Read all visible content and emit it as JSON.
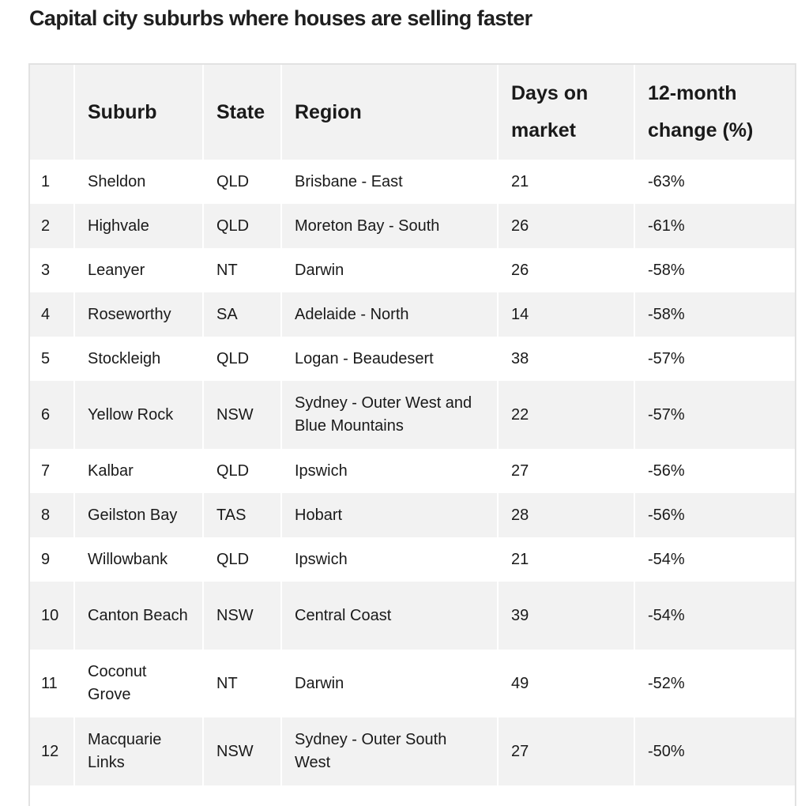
{
  "title": "Capital city suburbs where houses are selling faster",
  "table": {
    "headers": {
      "rank": "",
      "suburb": "Suburb",
      "state": "State",
      "region": "Region",
      "days": "Days on market",
      "change": "12-month change (%)"
    },
    "rows": [
      {
        "rank": "1",
        "suburb": "Sheldon",
        "state": "QLD",
        "region": "Brisbane - East",
        "days": "21",
        "change": "-63%"
      },
      {
        "rank": "2",
        "suburb": "Highvale",
        "state": "QLD",
        "region": "Moreton Bay - South",
        "days": "26",
        "change": "-61%"
      },
      {
        "rank": "3",
        "suburb": "Leanyer",
        "state": "NT",
        "region": "Darwin",
        "days": "26",
        "change": "-58%"
      },
      {
        "rank": "4",
        "suburb": "Roseworthy",
        "state": "SA",
        "region": "Adelaide - North",
        "days": "14",
        "change": "-58%"
      },
      {
        "rank": "5",
        "suburb": "Stockleigh",
        "state": "QLD",
        "region": "Logan - Beaudesert",
        "days": "38",
        "change": "-57%"
      },
      {
        "rank": "6",
        "suburb": "Yellow Rock",
        "state": "NSW",
        "region": "Sydney - Outer West and Blue Mountains",
        "days": "22",
        "change": "-57%"
      },
      {
        "rank": "7",
        "suburb": "Kalbar",
        "state": "QLD",
        "region": "Ipswich",
        "days": "27",
        "change": "-56%"
      },
      {
        "rank": "8",
        "suburb": "Geilston Bay",
        "state": "TAS",
        "region": "Hobart",
        "days": "28",
        "change": "-56%"
      },
      {
        "rank": "9",
        "suburb": "Willowbank",
        "state": "QLD",
        "region": "Ipswich",
        "days": "21",
        "change": "-54%"
      },
      {
        "rank": "10",
        "suburb": "Canton Beach",
        "state": "NSW",
        "region": "Central Coast",
        "days": "39",
        "change": "-54%"
      },
      {
        "rank": "11",
        "suburb": "Coconut Grove",
        "state": "NT",
        "region": "Darwin",
        "days": "49",
        "change": "-52%"
      },
      {
        "rank": "12",
        "suburb": "Macquarie Links",
        "state": "NSW",
        "region": "Sydney - Outer South West",
        "days": "27",
        "change": "-50%"
      }
    ]
  }
}
